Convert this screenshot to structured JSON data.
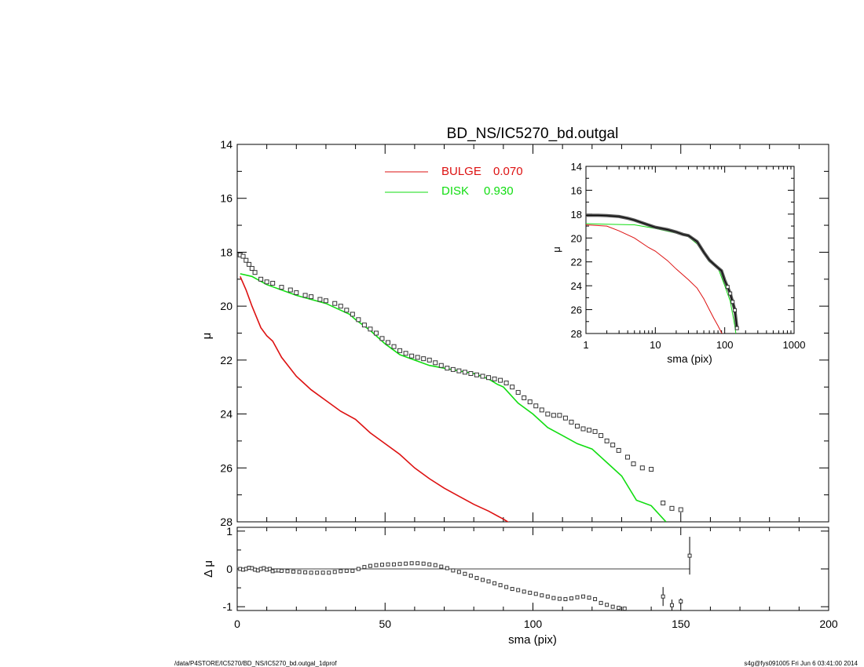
{
  "chart_data": [
    {
      "type": "scatter",
      "title": "BD_NS/IC5270_bd.outgal",
      "xlabel": "",
      "ylabel": "μ",
      "xlim": [
        0,
        200
      ],
      "ylim": [
        28,
        14
      ],
      "y_inverted": true,
      "yticks": [
        "14",
        "16",
        "18",
        "20",
        "22",
        "24",
        "26",
        "28"
      ],
      "legend": [
        {
          "label": "BULGE",
          "value": "0.070",
          "color": "#dd1111"
        },
        {
          "label": "DISK",
          "value": "0.930",
          "color": "#11dd11"
        }
      ],
      "legend_position": "top-center",
      "series": [
        {
          "name": "BULGE",
          "kind": "line",
          "color": "#dd1111",
          "x": [
            1,
            3,
            5,
            8,
            10,
            12,
            15,
            20,
            25,
            30,
            35,
            40,
            45,
            50,
            55,
            60,
            65,
            70,
            75,
            80,
            85,
            90,
            93
          ],
          "y": [
            18.9,
            19.4,
            20.0,
            20.8,
            21.1,
            21.3,
            21.9,
            22.6,
            23.1,
            23.5,
            23.9,
            24.2,
            24.7,
            25.1,
            25.5,
            26.0,
            26.4,
            26.75,
            27.05,
            27.35,
            27.6,
            27.9,
            28.1
          ]
        },
        {
          "name": "DISK",
          "kind": "line",
          "color": "#11dd11",
          "x": [
            1,
            5,
            10,
            20,
            30,
            38,
            40,
            45,
            50,
            55,
            60,
            65,
            70,
            75,
            80,
            85,
            88,
            90,
            95,
            100,
            105,
            110,
            115,
            120,
            125,
            130,
            135,
            140,
            145
          ],
          "y": [
            18.8,
            18.9,
            19.2,
            19.6,
            19.9,
            20.3,
            20.5,
            20.9,
            21.4,
            21.8,
            22.0,
            22.2,
            22.3,
            22.4,
            22.5,
            22.7,
            22.9,
            23.0,
            23.6,
            24.0,
            24.5,
            24.8,
            25.1,
            25.3,
            25.8,
            26.3,
            27.2,
            27.4,
            28.0
          ]
        },
        {
          "name": "",
          "kind": "markers",
          "color": "#333333",
          "x": [
            1,
            2,
            3,
            4,
            5,
            6,
            8,
            10,
            12,
            15,
            18,
            20,
            23,
            25,
            28,
            30,
            33,
            35,
            37,
            39,
            41,
            43,
            45,
            47,
            49,
            51,
            53,
            55,
            57,
            59,
            61,
            63,
            65,
            67,
            69,
            71,
            73,
            75,
            77,
            79,
            81,
            83,
            85,
            87,
            89,
            91,
            93,
            95,
            97,
            99,
            101,
            103,
            105,
            107,
            109,
            111,
            113,
            115,
            117,
            119,
            121,
            123,
            125,
            127,
            129,
            132,
            134,
            137,
            140,
            144,
            147,
            150
          ],
          "y": [
            18.1,
            18.15,
            18.3,
            18.45,
            18.6,
            18.75,
            19.0,
            19.1,
            19.15,
            19.3,
            19.4,
            19.5,
            19.6,
            19.65,
            19.75,
            19.8,
            19.9,
            20.0,
            20.15,
            20.3,
            20.5,
            20.7,
            20.85,
            21.0,
            21.2,
            21.35,
            21.5,
            21.65,
            21.75,
            21.85,
            21.9,
            21.95,
            22.0,
            22.1,
            22.2,
            22.3,
            22.35,
            22.4,
            22.45,
            22.5,
            22.55,
            22.6,
            22.65,
            22.7,
            22.75,
            22.85,
            23.0,
            23.2,
            23.4,
            23.55,
            23.7,
            23.85,
            24.0,
            24.05,
            24.05,
            24.15,
            24.3,
            24.45,
            24.55,
            24.6,
            24.65,
            24.8,
            25.0,
            25.15,
            25.35,
            25.6,
            25.85,
            26.0,
            26.05,
            27.3,
            27.5,
            27.55
          ]
        }
      ]
    },
    {
      "type": "line",
      "xlabel": "sma (pix)",
      "ylabel": "μ",
      "x_scale": "log",
      "xlim": [
        1,
        1000
      ],
      "ylim": [
        28,
        14
      ],
      "y_inverted": true,
      "xticks": [
        "1",
        "10",
        "100",
        "1000"
      ],
      "yticks": [
        "14",
        "16",
        "18",
        "20",
        "22",
        "24",
        "26",
        "28"
      ],
      "series": [
        {
          "name": "BULGE",
          "color": "#dd1111",
          "x": [
            1,
            2,
            3,
            5,
            8,
            10,
            15,
            20,
            30,
            40,
            50,
            60,
            70,
            80,
            93
          ],
          "y": [
            18.9,
            19.0,
            19.4,
            20.0,
            20.8,
            21.1,
            21.9,
            22.6,
            23.5,
            24.2,
            25.1,
            26.0,
            26.75,
            27.35,
            28.1
          ]
        },
        {
          "name": "DISK",
          "color": "#11dd11",
          "x": [
            1,
            2,
            5,
            10,
            20,
            30,
            40,
            60,
            80,
            100,
            120,
            140,
            145
          ],
          "y": [
            18.8,
            18.85,
            18.9,
            19.2,
            19.6,
            19.9,
            20.5,
            22.0,
            22.5,
            24.0,
            25.3,
            27.4,
            28.0
          ]
        },
        {
          "name": "",
          "color": "#333333",
          "x": [
            1,
            1.5,
            2,
            3,
            4,
            5,
            7,
            10,
            15,
            20,
            25,
            30,
            40,
            50,
            60,
            70,
            80,
            90,
            100,
            110,
            120,
            130,
            140,
            150
          ],
          "y": [
            18.1,
            18.1,
            18.12,
            18.2,
            18.35,
            18.5,
            18.8,
            19.1,
            19.3,
            19.5,
            19.7,
            19.8,
            20.3,
            21.2,
            21.85,
            22.2,
            22.5,
            22.75,
            23.55,
            24.1,
            24.65,
            25.35,
            26.05,
            27.55
          ]
        }
      ]
    },
    {
      "type": "scatter",
      "xlabel": "sma (pix)",
      "ylabel": "Δ μ",
      "xlim": [
        0,
        200
      ],
      "ylim": [
        -1.1,
        1.1
      ],
      "xticks": [
        "0",
        "50",
        "100",
        "150",
        "200"
      ],
      "yticks": [
        "1",
        "0",
        "-1"
      ],
      "series": [
        {
          "name": "",
          "color": "#333333",
          "x": [
            1,
            2,
            3,
            4,
            5,
            6,
            7,
            8,
            9,
            10,
            11,
            12,
            13,
            14,
            15,
            17,
            19,
            21,
            23,
            25,
            27,
            29,
            31,
            33,
            35,
            37,
            39,
            41,
            43,
            45,
            47,
            49,
            51,
            53,
            55,
            57,
            59,
            61,
            63,
            65,
            67,
            69,
            71,
            73,
            75,
            77,
            79,
            81,
            83,
            85,
            87,
            89,
            91,
            93,
            95,
            97,
            99,
            101,
            103,
            105,
            107,
            109,
            111,
            113,
            115,
            117,
            119,
            121,
            123,
            125,
            127,
            129,
            131,
            144,
            147,
            150,
            153
          ],
          "y": [
            0.0,
            -0.02,
            0.0,
            0.03,
            0.02,
            -0.02,
            -0.04,
            0.0,
            0.02,
            -0.02,
            0.0,
            -0.06,
            -0.04,
            -0.04,
            -0.05,
            -0.06,
            -0.07,
            -0.08,
            -0.09,
            -0.1,
            -0.1,
            -0.1,
            -0.1,
            -0.08,
            -0.06,
            -0.05,
            -0.05,
            0.0,
            0.05,
            0.08,
            0.1,
            0.11,
            0.12,
            0.12,
            0.13,
            0.14,
            0.15,
            0.15,
            0.14,
            0.12,
            0.1,
            0.06,
            0.02,
            -0.04,
            -0.08,
            -0.13,
            -0.18,
            -0.24,
            -0.29,
            -0.33,
            -0.38,
            -0.43,
            -0.48,
            -0.53,
            -0.56,
            -0.6,
            -0.63,
            -0.66,
            -0.7,
            -0.73,
            -0.77,
            -0.79,
            -0.8,
            -0.78,
            -0.75,
            -0.73,
            -0.76,
            -0.8,
            -0.9,
            -0.95,
            -1.0,
            -1.03,
            -1.05,
            -0.73,
            -0.96,
            -0.86,
            0.35
          ],
          "err": [
            0,
            0,
            0,
            0,
            0,
            0,
            0,
            0,
            0,
            0,
            0,
            0,
            0,
            0,
            0,
            0,
            0,
            0,
            0,
            0,
            0,
            0,
            0,
            0,
            0,
            0,
            0,
            0,
            0,
            0,
            0,
            0,
            0,
            0,
            0,
            0,
            0,
            0,
            0,
            0,
            0,
            0,
            0,
            0,
            0,
            0,
            0,
            0,
            0,
            0,
            0,
            0,
            0,
            0,
            0,
            0,
            0,
            0,
            0,
            0,
            0,
            0,
            0,
            0,
            0,
            0,
            0,
            0,
            0,
            0,
            0,
            0,
            0,
            0.25,
            0.15,
            0.08,
            0.5
          ]
        }
      ]
    }
  ],
  "footer": {
    "left": "/data/P4STORE/IC5270/BD_NS/IC5270_bd.outgal_1dprof",
    "right": "s4g@fys091005  Fri Jun  6 03:41:00 2014"
  }
}
